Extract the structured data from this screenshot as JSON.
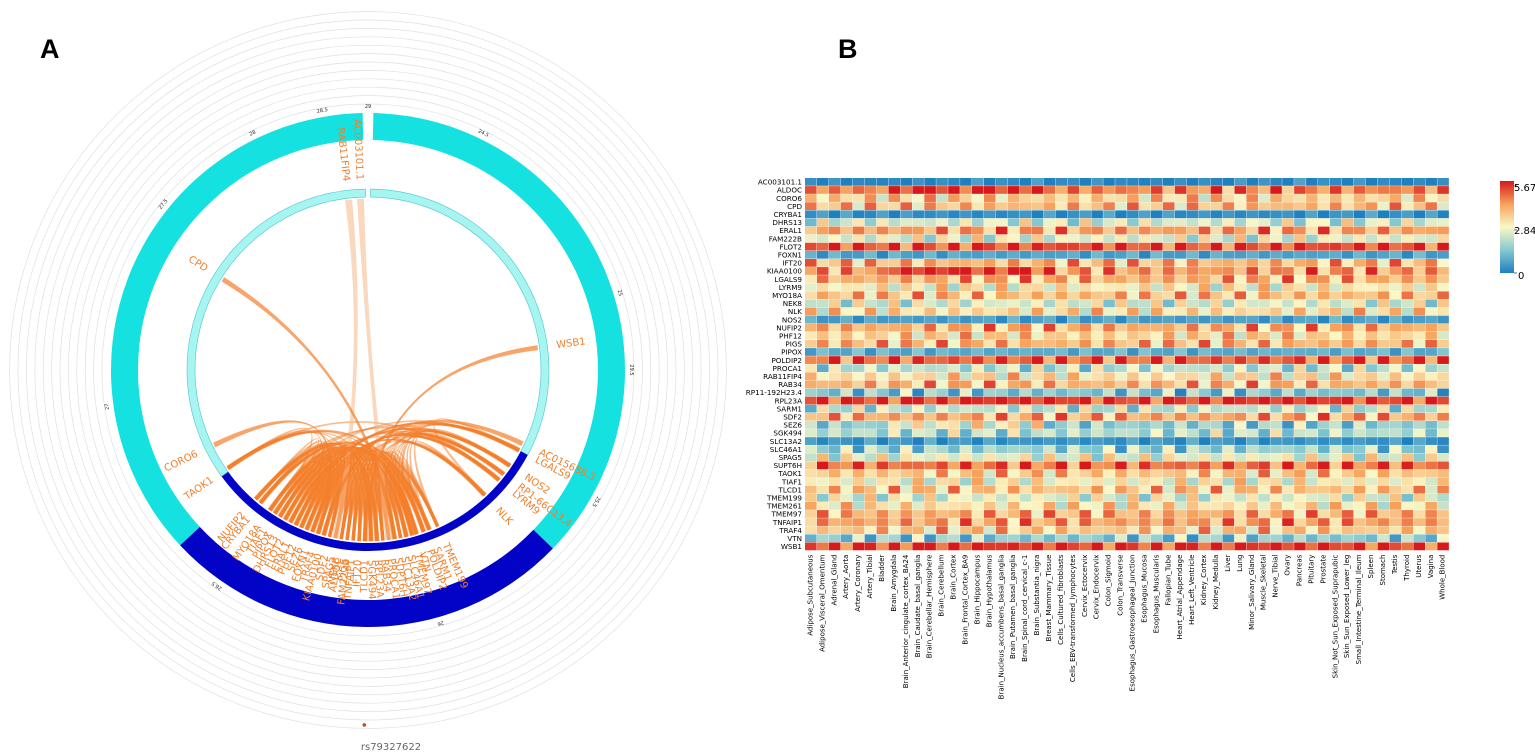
{
  "figure": {
    "panel_a_label": "A",
    "panel_b_label": "B"
  },
  "colors": {
    "chr_outer_light": "#14e1e0",
    "chr_outer_dark": "#0303c7",
    "chr_inner_light": "#a6f5f1",
    "chr_inner_dark": "#0303c7",
    "link": "#f47f2b",
    "link_light": "#f6b88a",
    "label": "#f07f2a",
    "snp_dot": "#d0452b",
    "grid": "#e0e0e0"
  },
  "chart_data": [
    {
      "type": "circos",
      "title": "",
      "snp": {
        "label": "rs79327622"
      },
      "tick_labels": [
        "24.5",
        "25",
        "25.5",
        "26",
        "26.5",
        "27",
        "27.5",
        "28",
        "28.5",
        "29",
        "29.5"
      ],
      "genes": [
        "AC003101.1",
        "RAB11FIP4",
        "CPD",
        "WSB1",
        "AC015688.3",
        "LGALS9",
        "NOS2",
        "RP1-66C13.4",
        "LYRM9",
        "NLK",
        "TMEM199",
        "SARM1",
        "POLDIP2",
        "VTN",
        "TMEM97",
        "SLC46A1",
        "SLC13A2",
        "SUPT6H",
        "PROCA1",
        "RAB34",
        "RPL23A",
        "SGK494",
        "TLCD1",
        "IFT20",
        "TNFAIP1",
        "PIGS",
        "ALDOC",
        "SPAG5",
        "SDF2",
        "KIAA0100",
        "TRAF4",
        "FOXN1",
        "SEZ6",
        "PHF12",
        "ERAL1",
        "FLOT2",
        "DHRS13",
        "PIPOX",
        "TIAF1",
        "MYO18A",
        "CRYBA1",
        "NUFIP2",
        "TAOK1",
        "CORO6",
        "NEK8",
        "FAM222B"
      ],
      "links": [
        {
          "from": "RAB11FIP4",
          "to": "SPAG5"
        },
        {
          "from": "AC003101.1",
          "to": "PROCA1"
        },
        {
          "from": "CPD",
          "to": "SUPT6H"
        },
        {
          "from": "WSB1",
          "to": "TLCD1"
        },
        {
          "from": "TAOK1",
          "to": "SARM1"
        },
        {
          "from": "CORO6",
          "to": "TRAF4"
        },
        {
          "from": "NUFIP2",
          "to": "RPL23A"
        },
        {
          "from": "CRYBA1",
          "to": "POLDIP2"
        },
        {
          "from": "MYO18A",
          "to": "SGK494"
        },
        {
          "from": "TIAF1",
          "to": "SLC46A1"
        },
        {
          "from": "PIPOX",
          "to": "VTN"
        },
        {
          "from": "DHRS13",
          "to": "TMEM97"
        },
        {
          "from": "FLOT2",
          "to": "NOS2"
        },
        {
          "from": "ERAL1",
          "to": "LGALS9"
        },
        {
          "from": "PHF12",
          "to": "NLK"
        },
        {
          "from": "SEZ6",
          "to": "LYRM9"
        },
        {
          "from": "FOXN1",
          "to": "RP1-66C13.4"
        },
        {
          "from": "KIAA0100",
          "to": "AC015688.3"
        }
      ]
    },
    {
      "type": "heatmap",
      "title": "",
      "rows": [
        "AC003101.1",
        "ALDOC",
        "CORO6",
        "CPD",
        "CRYBA1",
        "DHRS13",
        "ERAL1",
        "FAM222B",
        "FLOT2",
        "FOXN1",
        "IFT20",
        "KIAA0100",
        "LGALS9",
        "LYRM9",
        "MYO18A",
        "NEK8",
        "NLK",
        "NOS2",
        "NUFIP2",
        "PHF12",
        "PIGS",
        "PIPOX",
        "POLDIP2",
        "PROCA1",
        "RAB11FIP4",
        "RAB34",
        "RP11-192H23.4",
        "RPL23A",
        "SARM1",
        "SDF2",
        "SEZ6",
        "SGK494",
        "SLC13A2",
        "SLC46A1",
        "SPAG5",
        "SUPT6H",
        "TAOK1",
        "TIAF1",
        "TLCD1",
        "TMEM199",
        "TMEM261",
        "TMEM97",
        "TNFAIP1",
        "TRAF4",
        "VTN",
        "WSB1"
      ],
      "columns": [
        "Adipose_Subcutaneous",
        "Adipose_Visceral_Omentum",
        "Adrenal_Gland",
        "Artery_Aorta",
        "Artery_Coronary",
        "Artery_Tibial",
        "Bladder",
        "Brain_Amygdala",
        "Brain_Anterior_cingulate_cortex_BA24",
        "Brain_Caudate_basal_ganglia",
        "Brain_Cerebellar_Hemisphere",
        "Brain_Cerebellum",
        "Brain_Cortex",
        "Brain_Frontal_Cortex_BA9",
        "Brain_Hippocampus",
        "Brain_Hypothalamus",
        "Brain_Nucleus_accumbens_basal_ganglia",
        "Brain_Putamen_basal_ganglia",
        "Brain_Spinal_cord_cervical_c-1",
        "Brain_Substantia_nigra",
        "Breast_Mammary_Tissue",
        "Cells_Cultured_fibroblasts",
        "Cells_EBV-transformed_lymphocytes",
        "Cervix_Ectocervix",
        "Cervix_Endocervix",
        "Colon_Sigmoid",
        "Colon_Transverse",
        "Esophagus_Gastroesophageal_Junction",
        "Esophagus_Mucosa",
        "Esophagus_Muscularis",
        "Fallopian_Tube",
        "Heart_Atrial_Appendage",
        "Heart_Left_Ventricle",
        "Kidney_Cortex",
        "Kidney_Medulla",
        "Liver",
        "Lung",
        "Minor_Salivary_Gland",
        "Muscle_Skeletal",
        "Nerve_Tibial",
        "Ovary",
        "Pancreas",
        "Pituitary",
        "Prostate",
        "Skin_Not_Sun_Exposed_Suprapubic",
        "Skin_Sun_Exposed_Lower_leg",
        "Small_Intestine_Terminal_Ileum",
        "Spleen",
        "Stomach",
        "Testis",
        "Thyroid",
        "Uterus",
        "Vagina",
        "Whole_Blood"
      ],
      "row_profiles": [
        0.12,
        4.6,
        3.5,
        3.8,
        0.3,
        2.4,
        4.2,
        2.6,
        5.2,
        0.7,
        3.9,
        4.3,
        4.0,
        3.0,
        3.8,
        2.5,
        3.3,
        0.6,
        4.0,
        3.4,
        3.9,
        0.9,
        5.0,
        2.1,
        3.2,
        3.9,
        1.4,
        5.5,
        2.2,
        4.1,
        1.6,
        2.0,
        0.4,
        1.7,
        2.7,
        4.8,
        3.6,
        2.9,
        3.7,
        2.6,
        3.2,
        4.0,
        4.2,
        3.6,
        1.5,
        5.4
      ],
      "colorbar": {
        "min": 0,
        "mid": 2.84,
        "max": 5.67,
        "min_label": "0",
        "mid_label": "2.84",
        "max_label": "5.67"
      }
    }
  ]
}
